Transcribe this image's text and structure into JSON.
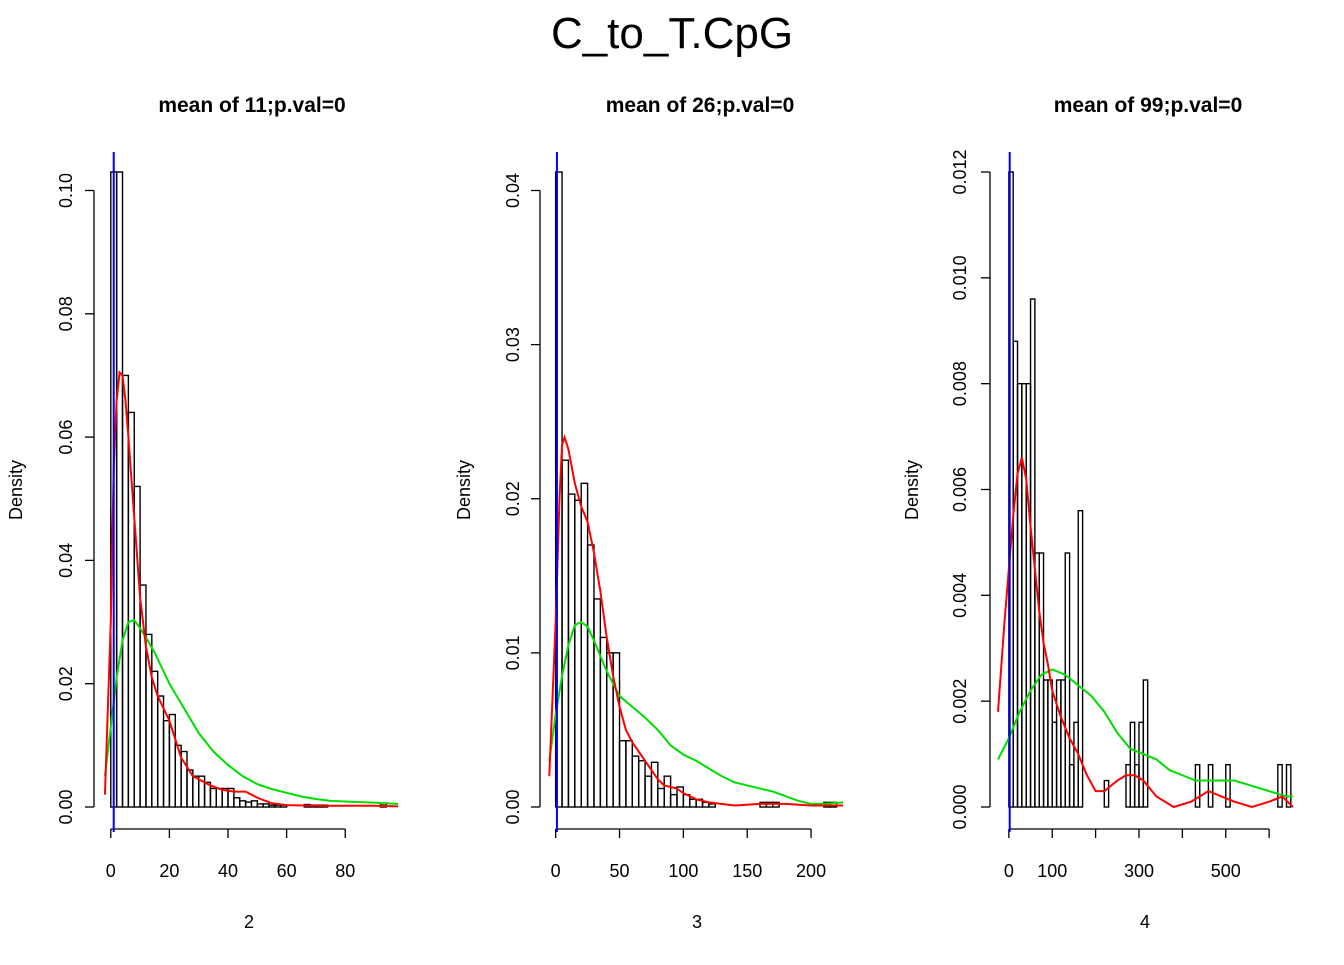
{
  "main_title": "C_to_T.CpG",
  "colors": {
    "bars": "#000000",
    "vline": "#0000ff",
    "red_curve": "#ff0000",
    "green_curve": "#00dd00",
    "background": "#ffffff"
  },
  "chart_data": [
    {
      "type": "histogram",
      "title": "mean of 11;p.val=0",
      "xlabel": "2",
      "ylabel": "Density",
      "xlim": [
        -3,
        98
      ],
      "ylim": [
        0,
        0.103
      ],
      "xticks": [
        0,
        20,
        40,
        60,
        80
      ],
      "xtick_labels": [
        "0",
        "20",
        "40",
        "60",
        "80"
      ],
      "yticks": [
        0.0,
        0.02,
        0.04,
        0.06,
        0.08,
        0.1
      ],
      "ytick_labels": [
        "0.00",
        "0.02",
        "0.04",
        "0.06",
        "0.08",
        "0.10"
      ],
      "bin_width": 2,
      "bin_start": 0,
      "densities": [
        0.103,
        0.103,
        0.07,
        0.064,
        0.052,
        0.036,
        0.028,
        0.022,
        0.018,
        0.014,
        0.015,
        0.01,
        0.009,
        0.006,
        0.005,
        0.005,
        0.004,
        0.003,
        0.003,
        0.003,
        0.003,
        0.0015,
        0.001,
        0.0008,
        0.001,
        0.0005,
        0.0005,
        0.0003,
        0.0003,
        0.0003,
        0.0,
        0.0,
        0.0,
        0.0004,
        0.0003,
        0.0003,
        0.0003,
        0.0,
        0.0,
        0.0,
        0.0,
        0.0,
        0.0,
        0.0,
        0.0,
        0.0,
        0.0005
      ],
      "vline": 1,
      "red_density": [
        [
          -2,
          0.002
        ],
        [
          0,
          0.03
        ],
        [
          1,
          0.055
        ],
        [
          2,
          0.066
        ],
        [
          3,
          0.0705
        ],
        [
          4,
          0.07
        ],
        [
          5,
          0.066
        ],
        [
          6,
          0.06
        ],
        [
          8,
          0.047
        ],
        [
          10,
          0.034
        ],
        [
          12,
          0.026
        ],
        [
          14,
          0.021
        ],
        [
          16,
          0.018
        ],
        [
          18,
          0.016
        ],
        [
          20,
          0.014
        ],
        [
          22,
          0.011
        ],
        [
          24,
          0.008
        ],
        [
          26,
          0.0065
        ],
        [
          28,
          0.005
        ],
        [
          30,
          0.0045
        ],
        [
          34,
          0.0035
        ],
        [
          38,
          0.0028
        ],
        [
          42,
          0.0025
        ],
        [
          46,
          0.0025
        ],
        [
          50,
          0.0015
        ],
        [
          55,
          0.0006
        ],
        [
          60,
          0.0003
        ],
        [
          70,
          0.0002
        ],
        [
          80,
          0.0002
        ],
        [
          90,
          0.0002
        ],
        [
          98,
          0.0001
        ]
      ],
      "green_density": [
        [
          -2,
          0.005
        ],
        [
          0,
          0.013
        ],
        [
          2,
          0.021
        ],
        [
          4,
          0.027
        ],
        [
          6,
          0.03
        ],
        [
          8,
          0.0303
        ],
        [
          10,
          0.029
        ],
        [
          12,
          0.0275
        ],
        [
          15,
          0.025
        ],
        [
          20,
          0.02
        ],
        [
          25,
          0.016
        ],
        [
          30,
          0.012
        ],
        [
          35,
          0.009
        ],
        [
          40,
          0.0068
        ],
        [
          45,
          0.005
        ],
        [
          50,
          0.0037
        ],
        [
          55,
          0.0029
        ],
        [
          60,
          0.0023
        ],
        [
          65,
          0.0017
        ],
        [
          70,
          0.0013
        ],
        [
          75,
          0.001
        ],
        [
          80,
          0.0009
        ],
        [
          85,
          0.0008
        ],
        [
          90,
          0.0007
        ],
        [
          98,
          0.0005
        ]
      ]
    },
    {
      "type": "histogram",
      "title": "mean of 26;p.val=0",
      "xlabel": "3",
      "ylabel": "Density",
      "xlim": [
        -6,
        225
      ],
      "ylim": [
        0,
        0.0412
      ],
      "xticks": [
        0,
        50,
        100,
        150,
        200
      ],
      "xtick_labels": [
        "0",
        "50",
        "100",
        "150",
        "200"
      ],
      "yticks": [
        0.0,
        0.01,
        0.02,
        0.03,
        0.04
      ],
      "ytick_labels": [
        "0.00",
        "0.01",
        "0.02",
        "0.03",
        "0.04"
      ],
      "bin_width": 5,
      "bin_start": 0,
      "densities": [
        0.0412,
        0.0225,
        0.0203,
        0.0199,
        0.021,
        0.017,
        0.0135,
        0.011,
        0.01,
        0.01,
        0.0043,
        0.0043,
        0.0033,
        0.003,
        0.002,
        0.0029,
        0.0012,
        0.002,
        0.0008,
        0.0013,
        0.0008,
        0.0005,
        0.0005,
        0.0003,
        0.0002,
        0.0,
        0.0,
        0.0,
        0.0,
        0.0,
        0.0,
        0.0,
        0.0003,
        0.0003,
        0.0003,
        0.0,
        0.0,
        0.0,
        0.0,
        0.0,
        0.0,
        0.0,
        0.0003,
        0.0003
      ],
      "vline": 1,
      "red_density": [
        [
          -5,
          0.002
        ],
        [
          0,
          0.012
        ],
        [
          3,
          0.02
        ],
        [
          5,
          0.0235
        ],
        [
          7,
          0.024
        ],
        [
          10,
          0.0232
        ],
        [
          15,
          0.021
        ],
        [
          20,
          0.0195
        ],
        [
          25,
          0.0185
        ],
        [
          30,
          0.0165
        ],
        [
          35,
          0.014
        ],
        [
          40,
          0.011
        ],
        [
          45,
          0.0085
        ],
        [
          50,
          0.0065
        ],
        [
          55,
          0.005
        ],
        [
          60,
          0.0042
        ],
        [
          65,
          0.0036
        ],
        [
          70,
          0.003
        ],
        [
          75,
          0.0024
        ],
        [
          80,
          0.0018
        ],
        [
          85,
          0.0014
        ],
        [
          90,
          0.0013
        ],
        [
          95,
          0.0012
        ],
        [
          100,
          0.0009
        ],
        [
          110,
          0.0005
        ],
        [
          120,
          0.0003
        ],
        [
          140,
          0.0001
        ],
        [
          160,
          0.0002
        ],
        [
          180,
          0.0002
        ],
        [
          200,
          0.0001
        ],
        [
          225,
          0.0001
        ]
      ],
      "green_density": [
        [
          -5,
          0.003
        ],
        [
          0,
          0.006
        ],
        [
          5,
          0.0085
        ],
        [
          10,
          0.0105
        ],
        [
          15,
          0.0118
        ],
        [
          20,
          0.012
        ],
        [
          25,
          0.0117
        ],
        [
          30,
          0.0108
        ],
        [
          40,
          0.0088
        ],
        [
          50,
          0.0072
        ],
        [
          60,
          0.0065
        ],
        [
          70,
          0.0058
        ],
        [
          80,
          0.005
        ],
        [
          90,
          0.004
        ],
        [
          100,
          0.0034
        ],
        [
          110,
          0.003
        ],
        [
          120,
          0.0025
        ],
        [
          130,
          0.002
        ],
        [
          140,
          0.0016
        ],
        [
          150,
          0.0014
        ],
        [
          160,
          0.0012
        ],
        [
          170,
          0.001
        ],
        [
          180,
          0.0007
        ],
        [
          190,
          0.0004
        ],
        [
          200,
          0.0002
        ],
        [
          210,
          0.0002
        ],
        [
          225,
          0.0003
        ]
      ]
    },
    {
      "type": "histogram",
      "title": "mean of 99;p.val=0",
      "xlabel": "4",
      "ylabel": "Density",
      "xlim": [
        -25,
        655
      ],
      "ylim": [
        0,
        0.012
      ],
      "xticks": [
        0,
        100,
        200,
        300,
        400,
        500,
        600
      ],
      "xtick_labels": [
        "0",
        "100",
        "",
        "300",
        "",
        "500",
        ""
      ],
      "yticks": [
        0.0,
        0.002,
        0.004,
        0.006,
        0.008,
        0.01,
        0.012
      ],
      "ytick_labels": [
        "0.000",
        "0.002",
        "0.004",
        "0.006",
        "0.008",
        "0.010",
        "0.012"
      ],
      "bin_width": 10,
      "bin_start": 0,
      "densities": [
        0.012,
        0.0088,
        0.008,
        0.008,
        0.008,
        0.0096,
        0.0048,
        0.0048,
        0.0024,
        0.0024,
        0.0016,
        0.0024,
        0.0024,
        0.0048,
        0.0008,
        0.0016,
        0.0056,
        0.0,
        0.0,
        0.0,
        0.0,
        0.0,
        0.0005,
        0.0,
        0.0,
        0.0,
        0.0,
        0.0008,
        0.0016,
        0.0008,
        0.0016,
        0.0024,
        0.0,
        0.0,
        0.0,
        0.0,
        0.0,
        0.0,
        0.0,
        0.0,
        0.0,
        0.0,
        0.0,
        0.0008,
        0.0,
        0.0,
        0.0008,
        0.0,
        0.0,
        0.0,
        0.0008,
        0.0,
        0.0,
        0.0,
        0.0,
        0.0,
        0.0,
        0.0,
        0.0,
        0.0,
        0.0,
        0.0,
        0.0008,
        0.0,
        0.0008
      ],
      "vline": 2,
      "red_density": [
        [
          -25,
          0.0018
        ],
        [
          -10,
          0.0035
        ],
        [
          0,
          0.0045
        ],
        [
          10,
          0.0055
        ],
        [
          20,
          0.0063
        ],
        [
          30,
          0.0066
        ],
        [
          40,
          0.0062
        ],
        [
          50,
          0.0053
        ],
        [
          60,
          0.0045
        ],
        [
          70,
          0.0037
        ],
        [
          80,
          0.0031
        ],
        [
          90,
          0.0027
        ],
        [
          100,
          0.0022
        ],
        [
          120,
          0.0017
        ],
        [
          140,
          0.0013
        ],
        [
          160,
          0.001
        ],
        [
          180,
          0.0006
        ],
        [
          200,
          0.0003
        ],
        [
          220,
          0.0003
        ],
        [
          250,
          0.0005
        ],
        [
          270,
          0.0006
        ],
        [
          290,
          0.0006
        ],
        [
          310,
          0.0005
        ],
        [
          340,
          0.0002
        ],
        [
          380,
          0.0
        ],
        [
          420,
          0.0001
        ],
        [
          460,
          0.0003
        ],
        [
          490,
          0.0002
        ],
        [
          520,
          0.0001
        ],
        [
          560,
          0.0
        ],
        [
          600,
          0.0001
        ],
        [
          630,
          0.0002
        ],
        [
          655,
          0.0
        ]
      ],
      "green_density": [
        [
          -25,
          0.0009
        ],
        [
          0,
          0.0013
        ],
        [
          25,
          0.0018
        ],
        [
          50,
          0.0022
        ],
        [
          75,
          0.0025
        ],
        [
          100,
          0.0026
        ],
        [
          130,
          0.0025
        ],
        [
          160,
          0.0023
        ],
        [
          190,
          0.0021
        ],
        [
          220,
          0.0018
        ],
        [
          250,
          0.0014
        ],
        [
          280,
          0.0011
        ],
        [
          310,
          0.001
        ],
        [
          340,
          0.0009
        ],
        [
          370,
          0.0007
        ],
        [
          400,
          0.0006
        ],
        [
          430,
          0.0005
        ],
        [
          460,
          0.0005
        ],
        [
          490,
          0.0005
        ],
        [
          520,
          0.0005
        ],
        [
          560,
          0.0004
        ],
        [
          600,
          0.0003
        ],
        [
          640,
          0.0002
        ],
        [
          655,
          0.0002
        ]
      ]
    }
  ]
}
